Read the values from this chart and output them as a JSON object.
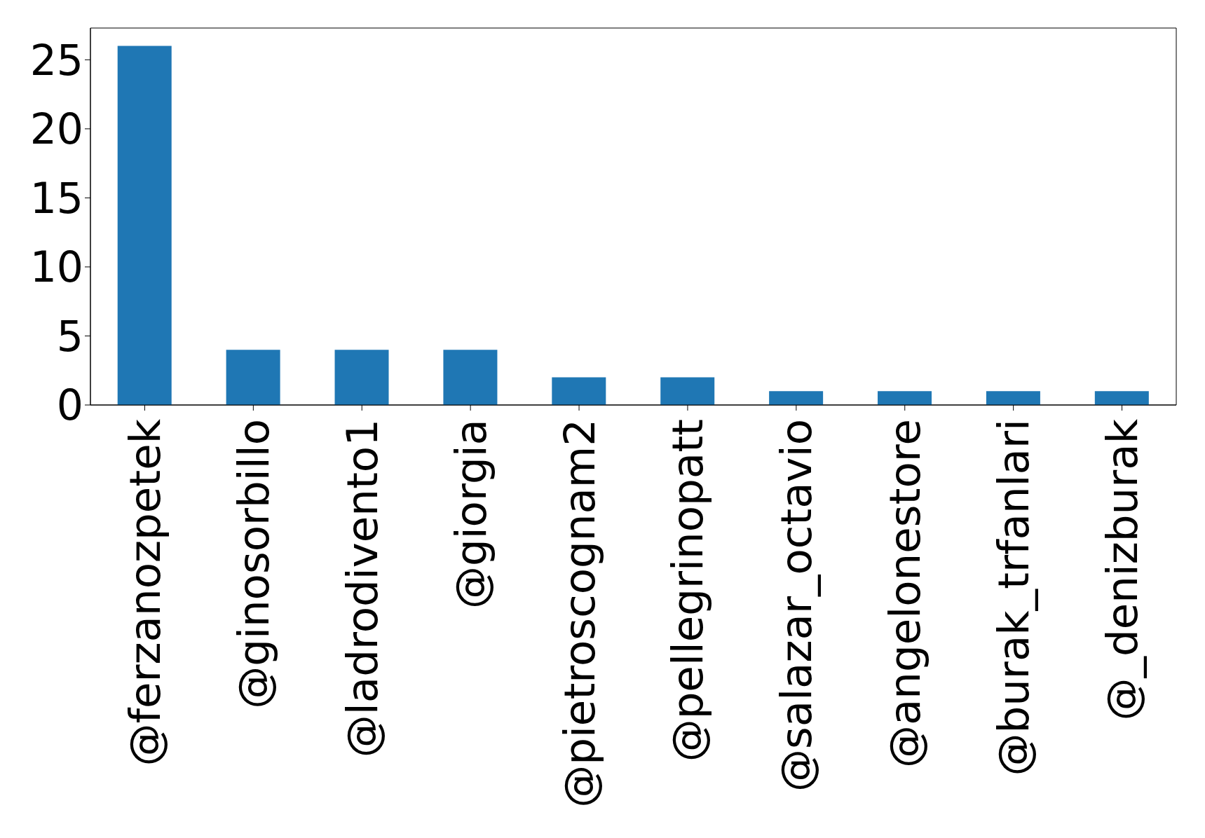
{
  "chart_data": {
    "type": "bar",
    "categories": [
      "@ferzanozpetek",
      "@ginosorbillo",
      "@ladrodivento1",
      "@giorgia",
      "@pietroscognam2",
      "@pellegrinopatt",
      "@salazar_octavio",
      "@angelonestore",
      "@burak_trfanlari",
      "@_denizburak"
    ],
    "values": [
      26,
      4,
      4,
      4,
      2,
      2,
      1,
      1,
      1,
      1
    ],
    "color": "#1f77b4",
    "ylim": [
      0,
      27.3
    ],
    "yticks": [
      0,
      5,
      10,
      15,
      20,
      25
    ],
    "grid": false
  }
}
